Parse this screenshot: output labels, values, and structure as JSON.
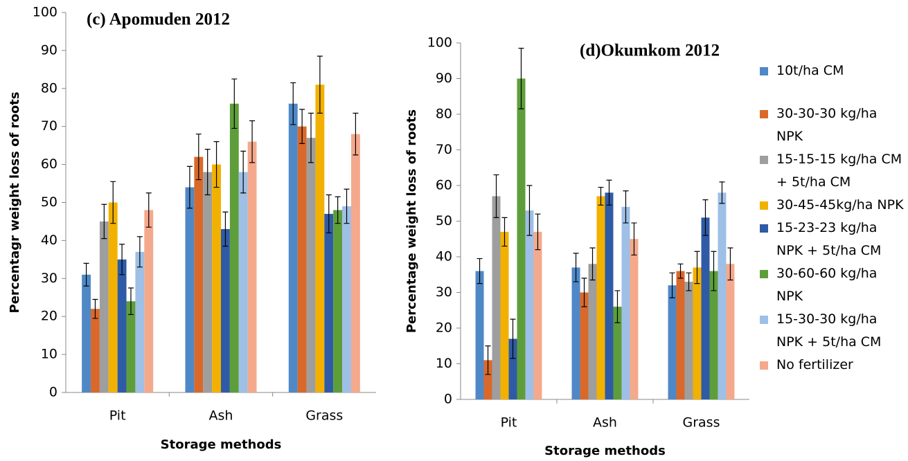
{
  "chart_data": [
    {
      "type": "bar",
      "title": "(c) Apomuden 2012",
      "x_label": "Storage methods",
      "y_label": "Percentagr weight loss of roots",
      "categories": [
        "Pit",
        "Ash",
        "Grass"
      ],
      "ylim": [
        0,
        100
      ],
      "yticks": [
        0,
        10,
        20,
        30,
        40,
        50,
        60,
        70,
        80,
        90,
        100
      ],
      "grid": false,
      "legend": false,
      "series": [
        {
          "color": "#4f88c6",
          "values": [
            31,
            54,
            76
          ],
          "errors": [
            3,
            5.5,
            5.5
          ]
        },
        {
          "color": "#d9692b",
          "values": [
            22,
            62,
            70
          ],
          "errors": [
            2.5,
            6,
            4.5
          ]
        },
        {
          "color": "#9e9e9e",
          "values": [
            45,
            58,
            67
          ],
          "errors": [
            4.5,
            6,
            6.5
          ]
        },
        {
          "color": "#f2b100",
          "values": [
            50,
            60,
            81
          ],
          "errors": [
            5.5,
            6,
            7.5
          ]
        },
        {
          "color": "#2f5ba6",
          "values": [
            35,
            43,
            47
          ],
          "errors": [
            4,
            4.5,
            5
          ]
        },
        {
          "color": "#5e9e3a",
          "values": [
            24,
            76,
            48
          ],
          "errors": [
            3.5,
            6.5,
            3.5
          ]
        },
        {
          "color": "#9ebfe6",
          "values": [
            37,
            58,
            49
          ],
          "errors": [
            4,
            5.5,
            4.5
          ]
        },
        {
          "color": "#f4a98c",
          "values": [
            48,
            66,
            68
          ],
          "errors": [
            4.5,
            5.5,
            5.5
          ]
        }
      ]
    },
    {
      "type": "bar",
      "title": "(d)Okumkom 2012",
      "x_label": "Storage methods",
      "y_label": "Percentage weight loss of roots",
      "categories": [
        "Pit",
        "Ash",
        "Grass"
      ],
      "ylim": [
        0,
        100
      ],
      "yticks": [
        0,
        10,
        20,
        30,
        40,
        50,
        60,
        70,
        80,
        90,
        100
      ],
      "grid": false,
      "legend": true,
      "series": [
        {
          "name": "10t/ha CM",
          "color": "#4f88c6",
          "values": [
            36,
            37,
            32
          ],
          "errors": [
            3.5,
            4,
            3.5
          ]
        },
        {
          "name": "30-30-30 kg/ha NPK",
          "color": "#d9692b",
          "values": [
            11,
            30,
            36
          ],
          "errors": [
            4,
            4,
            2
          ]
        },
        {
          "name": "15-15-15 kg/ha CM + 5t/ha CM",
          "color": "#9e9e9e",
          "values": [
            57,
            38,
            33
          ],
          "errors": [
            6,
            4.5,
            2.5
          ]
        },
        {
          "name": "30-45-45kg/ha NPK",
          "color": "#f2b100",
          "values": [
            47,
            57,
            37
          ],
          "errors": [
            4,
            2.5,
            4.5
          ]
        },
        {
          "name": "15-23-23 kg/ha NPK + 5t/ha CM",
          "color": "#2f5ba6",
          "values": [
            17,
            58,
            51
          ],
          "errors": [
            5.5,
            3.5,
            5
          ]
        },
        {
          "name": "30-60-60 kg/ha NPK",
          "color": "#5e9e3a",
          "values": [
            90,
            26,
            36
          ],
          "errors": [
            8.5,
            4.5,
            5.5
          ]
        },
        {
          "name": "15-30-30 kg/ha NPK + 5t/ha CM",
          "color": "#9ebfe6",
          "values": [
            53,
            54,
            58
          ],
          "errors": [
            7,
            4.5,
            3
          ]
        },
        {
          "name": "No fertilizer",
          "color": "#f4a98c",
          "values": [
            47,
            45,
            38
          ],
          "errors": [
            5,
            4.5,
            4.5
          ]
        }
      ]
    }
  ]
}
